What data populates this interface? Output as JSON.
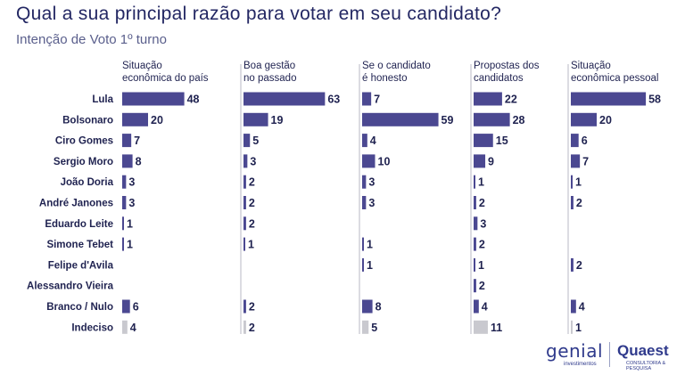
{
  "title": "Qual a sua principal razão para votar em seu candidato?",
  "subtitle": "Intenção de Voto 1º turno",
  "logos": {
    "genial": "genial",
    "genial_sub": "investimentos",
    "quaest": "Quaest",
    "quaest_sub": "CONSULTORIA & PESQUISA"
  },
  "colors": {
    "bar": "#4b4891",
    "bar_light": "#c9c9cf",
    "divider": "#a8a8b8"
  },
  "chart_data": {
    "type": "bar",
    "orientation": "horizontal-small-multiples",
    "categories": [
      "Lula",
      "Bolsonaro",
      "Ciro Gomes",
      "Sergio Moro",
      "João Doria",
      "André Janones",
      "Eduardo Leite",
      "Simone Tebet",
      "Felipe d'Avila",
      "Alessandro Vieira",
      "Branco / Nulo",
      "Indeciso"
    ],
    "series": [
      {
        "name": "Situação econômica do país",
        "values": [
          48,
          20,
          7,
          8,
          3,
          3,
          1,
          1,
          null,
          null,
          6,
          4
        ]
      },
      {
        "name": "Boa gestão no passado",
        "values": [
          63,
          19,
          5,
          3,
          2,
          2,
          2,
          1,
          null,
          null,
          2,
          2
        ]
      },
      {
        "name": "Se o candidato é honesto",
        "values": [
          7,
          59,
          4,
          10,
          3,
          3,
          null,
          1,
          1,
          null,
          8,
          5
        ]
      },
      {
        "name": "Propostas dos candidatos",
        "values": [
          22,
          28,
          15,
          9,
          1,
          2,
          3,
          2,
          1,
          2,
          4,
          11
        ]
      },
      {
        "name": "Situação econômica pessoal",
        "values": [
          58,
          20,
          6,
          7,
          1,
          2,
          null,
          null,
          2,
          null,
          4,
          1
        ]
      }
    ],
    "light_categories": [
      "Indeciso"
    ]
  }
}
